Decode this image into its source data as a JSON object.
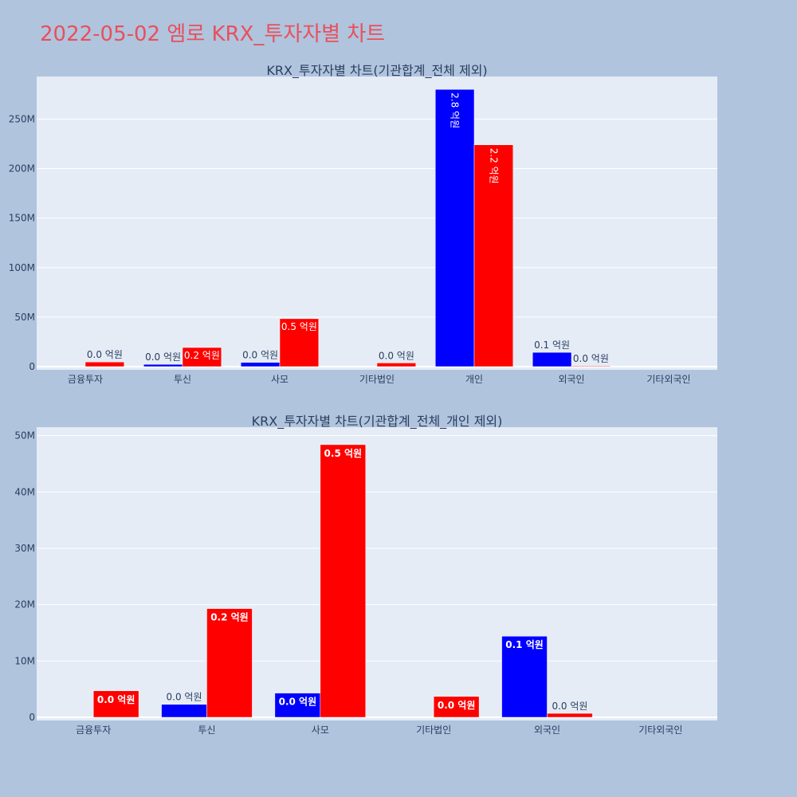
{
  "page": {
    "title": "2022-05-02 엠로 KRX_투자자별 차트"
  },
  "colors": {
    "background": "#b0c4de",
    "plot_bg": "#e5ecf6",
    "title": "#e8505b",
    "axis_text": "#2a3f5f",
    "grid": "#ffffff",
    "series_blue": "#0000ff",
    "series_red": "#ff0000"
  },
  "chart_data": [
    {
      "type": "bar",
      "title": "KRX_투자자별 차트(기관합계_전체 제외)",
      "categories": [
        "금융투자",
        "투신",
        "사모",
        "기타법인",
        "개인",
        "외국인",
        "기타외국인"
      ],
      "series": [
        {
          "color": "#0000ff",
          "values": [
            0,
            2300000,
            4300000,
            0,
            280000000,
            14400000,
            0
          ],
          "labels": [
            "",
            "0.0 억원",
            "0.0 억원",
            "",
            "2.8 억원",
            "0.1 억원",
            ""
          ]
        },
        {
          "color": "#ff0000",
          "values": [
            4700000,
            19300000,
            48400000,
            3700000,
            224000000,
            700000,
            0
          ],
          "labels": [
            "0.0 억원",
            "0.2 억원",
            "0.5 억원",
            "0.0 억원",
            "2.2 억원",
            "0.0 억원",
            ""
          ]
        }
      ],
      "ylim": [
        0,
        293000000
      ],
      "yticks": [
        0,
        50000000,
        100000000,
        150000000,
        200000000,
        250000000
      ],
      "ytick_labels": [
        "0",
        "50M",
        "100M",
        "150M",
        "200M",
        "250M"
      ],
      "grid": true
    },
    {
      "type": "bar",
      "title": "KRX_투자자별 차트(기관합계_전체_개인 제외)",
      "categories": [
        "금융투자",
        "투신",
        "사모",
        "기타법인",
        "외국인",
        "기타외국인"
      ],
      "series": [
        {
          "color": "#0000ff",
          "values": [
            0,
            2300000,
            4300000,
            0,
            14400000,
            0
          ],
          "labels": [
            "",
            "0.0 억원",
            "0.0 억원",
            "",
            "0.1 억원",
            ""
          ]
        },
        {
          "color": "#ff0000",
          "values": [
            4700000,
            19300000,
            48400000,
            3700000,
            700000,
            0
          ],
          "labels": [
            "0.0 억원",
            "0.2 억원",
            "0.5 억원",
            "0.0 억원",
            "0.0 억원",
            ""
          ]
        }
      ],
      "ylim": [
        0,
        51500000
      ],
      "yticks": [
        0,
        10000000,
        20000000,
        30000000,
        40000000,
        50000000
      ],
      "ytick_labels": [
        "0",
        "10M",
        "20M",
        "30M",
        "40M",
        "50M"
      ],
      "grid": true
    }
  ]
}
